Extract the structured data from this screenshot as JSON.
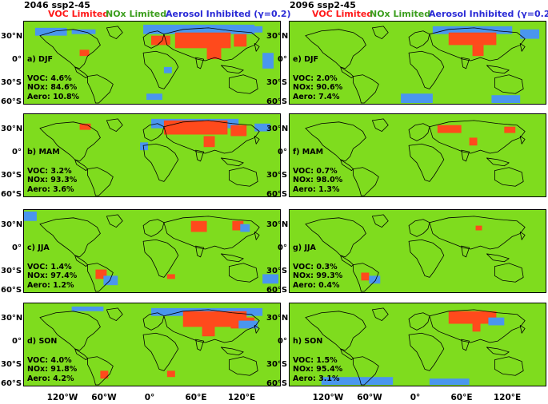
{
  "headers": {
    "left_title": "2046 ssp2-45",
    "right_title": "2096 ssp2-45",
    "voc": "VOC Limited",
    "nox": "NOx Limited",
    "aero": "Aerosol Inhibited (γ=0.2)"
  },
  "colors": {
    "voc": "#ff4a1c",
    "nox": "#7fdc1e",
    "aero": "#4a96ee"
  },
  "panels": [
    {
      "label": "a) DJF",
      "voc": "VOC: 4.6%",
      "nox": "NOx: 84.6%",
      "aero": "Aero: 10.8%"
    },
    {
      "label": "e) DJF",
      "voc": "VOC: 2.0%",
      "nox": "NOx: 90.6%",
      "aero": "Aero: 7.4%"
    },
    {
      "label": "b) MAM",
      "voc": "VOC: 3.2%",
      "nox": "NOx: 93.3%",
      "aero": "Aero: 3.6%"
    },
    {
      "label": "f) MAM",
      "voc": "VOC: 0.7%",
      "nox": "NOx: 98.0%",
      "aero": "Aero: 1.3%"
    },
    {
      "label": "c) JJA",
      "voc": "VOC: 1.4%",
      "nox": "NOx: 97.4%",
      "aero": "Aero: 1.2%"
    },
    {
      "label": "g) JJA",
      "voc": "VOC: 0.3%",
      "nox": "NOx: 99.3%",
      "aero": "Aero: 0.4%"
    },
    {
      "label": "d) SON",
      "voc": "VOC: 4.0%",
      "nox": "NOx: 91.8%",
      "aero": "Aero: 4.2%"
    },
    {
      "label": "h) SON",
      "voc": "VOC: 1.5%",
      "nox": "NOx: 95.4%",
      "aero": "Aero: 3.1%"
    }
  ],
  "axes": {
    "lat_ticks": [
      "30°N",
      "0°",
      "30°S",
      "60°S"
    ],
    "lat_ticks_top": "60°S",
    "lon_ticks": [
      "120°W",
      "60°W",
      "0°",
      "60°E",
      "120°E"
    ]
  }
}
